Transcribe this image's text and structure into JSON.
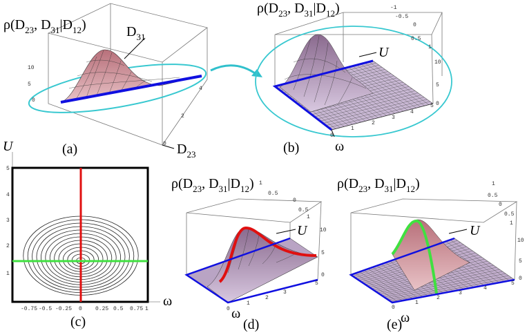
{
  "panels": {
    "a": {
      "label": "(a)",
      "z_label": [
        {
          "t": "ρ(D",
          "s": "23"
        },
        {
          "t": ", D",
          "s": "31"
        },
        {
          "t": "|D",
          "s": "12"
        },
        {
          "t": ")"
        }
      ],
      "axis_d31": [
        {
          "t": "D",
          "s": "31"
        }
      ],
      "axis_d23": [
        {
          "t": "D",
          "s": "23"
        }
      ],
      "z_ticks": [
        "10",
        "5",
        "0"
      ],
      "d23_ticks": [
        "4",
        "2",
        "0"
      ]
    },
    "b": {
      "label": "(b)",
      "z_label": [
        {
          "t": "ρ(D",
          "s": "23"
        },
        {
          "t": ", D",
          "s": "31"
        },
        {
          "t": "|D",
          "s": "12"
        },
        {
          "t": ")"
        }
      ],
      "axis_u": "U",
      "axis_w": "ω",
      "u_ticks": [
        "-1",
        "-0.5",
        "0",
        "0.5",
        "1"
      ],
      "w_ticks": [
        "0",
        "1",
        "2",
        "3",
        "4",
        "5"
      ],
      "z_ticks": [
        "10",
        "5",
        "0"
      ]
    },
    "c": {
      "label": "(c)",
      "axis_u": "U",
      "axis_w": "ω",
      "x_ticks": [
        "-0.75",
        "-0.5",
        "-0.25",
        "0",
        "0.25",
        "0.5",
        "0.75",
        "1"
      ],
      "y_ticks": [
        "5",
        "4",
        "3",
        "2",
        "1"
      ]
    },
    "d": {
      "label": "(d)",
      "z_label": [
        {
          "t": "ρ(D",
          "s": "23"
        },
        {
          "t": ", D",
          "s": "31"
        },
        {
          "t": "|D",
          "s": "12"
        },
        {
          "t": ")"
        }
      ],
      "axis_u": "U",
      "axis_w": "ω",
      "u_ticks": [
        "1",
        "0.5",
        "0",
        "0.5",
        "1"
      ],
      "w_ticks": [
        "0",
        "1",
        "2",
        "3",
        "5"
      ],
      "z_ticks": [
        "10",
        "5",
        "0"
      ]
    },
    "e": {
      "label": "(e)",
      "z_label": [
        {
          "t": "ρ(D",
          "s": "23"
        },
        {
          "t": ", D",
          "s": "31"
        },
        {
          "t": "|D",
          "s": "12"
        },
        {
          "t": ")"
        }
      ],
      "axis_u": "U",
      "axis_w": "ω",
      "u_ticks": [
        "1",
        "0.5",
        "0",
        "0.5",
        "1"
      ],
      "w_ticks": [
        "0",
        "1",
        "2",
        "3",
        "4",
        "5"
      ],
      "z_ticks": [
        "10",
        "5",
        "0"
      ]
    }
  }
}
